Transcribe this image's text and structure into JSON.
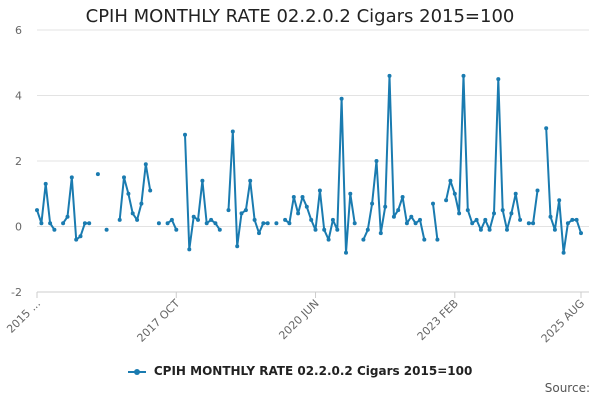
{
  "chart_data": {
    "type": "line",
    "title": "CPIH MONTHLY RATE 02.2.0.2 Cigars 2015=100",
    "xlabel": "",
    "ylabel": "",
    "x_tick_labels": [
      "2015 ...",
      "2017 OCT",
      "2020 JUN",
      "2023 FEB",
      "2025 AUG"
    ],
    "y_ticks": [
      -2,
      0,
      2,
      4,
      6
    ],
    "ylim": [
      -2,
      6
    ],
    "grid": true,
    "legend_position": "bottom",
    "series": [
      {
        "name": "CPIH MONTHLY RATE 02.2.0.2 Cigars 2015=100",
        "color": "#1a7bb0",
        "values": [
          0.5,
          0.1,
          1.3,
          0.1,
          -0.1,
          null,
          0.1,
          0.3,
          1.5,
          -0.4,
          -0.3,
          0.1,
          0.1,
          null,
          1.6,
          null,
          -0.1,
          null,
          null,
          0.2,
          1.5,
          1.0,
          0.4,
          0.2,
          0.7,
          1.9,
          1.1,
          null,
          0.1,
          null,
          0.1,
          0.2,
          -0.1,
          null,
          2.8,
          -0.7,
          0.3,
          0.2,
          1.4,
          0.1,
          0.2,
          0.1,
          -0.1,
          null,
          0.5,
          2.9,
          -0.6,
          0.4,
          0.5,
          1.4,
          0.2,
          -0.2,
          0.1,
          0.1,
          null,
          0.1,
          null,
          0.2,
          0.1,
          0.9,
          0.4,
          0.9,
          0.6,
          0.2,
          -0.1,
          1.1,
          -0.1,
          -0.4,
          0.2,
          -0.1,
          3.9,
          -0.8,
          1.0,
          0.1,
          null,
          -0.4,
          -0.1,
          0.7,
          2.0,
          -0.2,
          0.6,
          4.6,
          0.3,
          0.5,
          0.9,
          0.1,
          0.3,
          0.1,
          0.2,
          -0.4,
          null,
          0.7,
          -0.4,
          null,
          0.8,
          1.4,
          1.0,
          0.4,
          4.6,
          0.5,
          0.1,
          0.2,
          -0.1,
          0.2,
          -0.1,
          0.4,
          4.5,
          0.5,
          -0.1,
          0.4,
          1.0,
          0.2,
          null,
          0.1,
          0.1,
          1.1,
          null,
          3.0,
          0.3,
          -0.1,
          0.8,
          -0.8,
          0.1,
          0.2,
          0.2,
          -0.2
        ]
      }
    ]
  },
  "source_label": "Source:"
}
